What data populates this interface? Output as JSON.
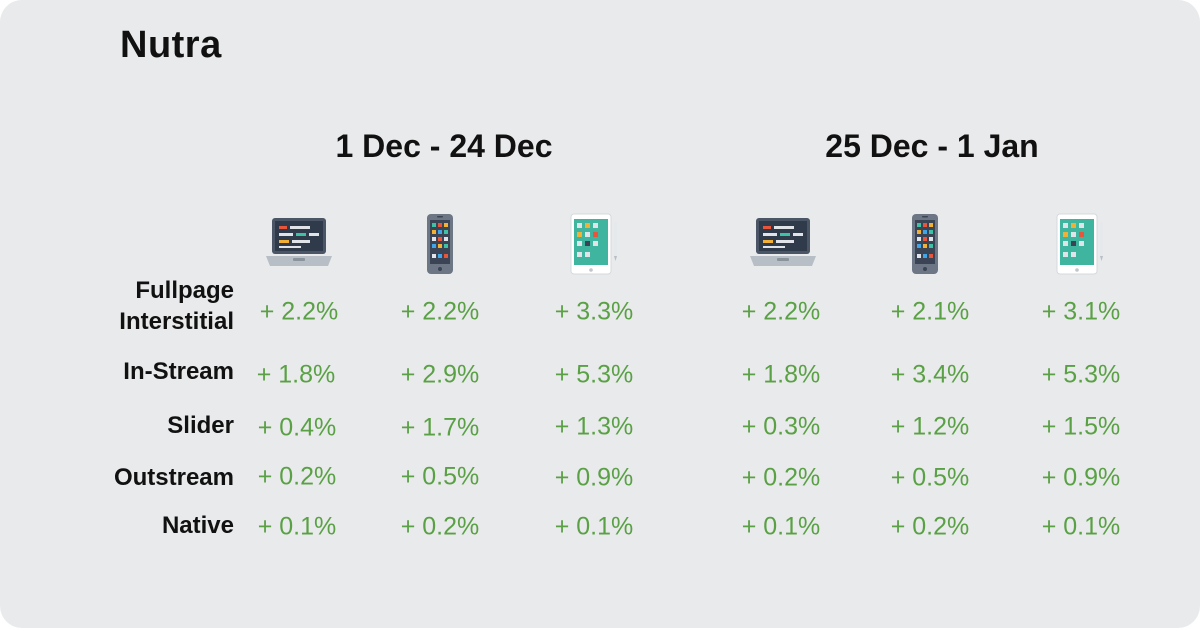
{
  "title": "Nutra",
  "periods": [
    "1 Dec - 24 Dec",
    "25 Dec - 1 Jan"
  ],
  "devices": [
    "laptop-icon",
    "smartphone-icon",
    "tablet-icon"
  ],
  "rows": [
    {
      "label_line1": "Fullpage",
      "label_line2": "Interstitial",
      "values": [
        "+ 2.2%",
        "+ 2.2%",
        "+ 3.3%",
        "+ 2.2%",
        "+ 2.1%",
        "+ 3.1%"
      ]
    },
    {
      "label_line1": "In-Stream",
      "values": [
        "+ 1.8%",
        "+ 2.9%",
        "+ 5.3%",
        "+ 1.8%",
        "+ 3.4%",
        "+ 5.3%"
      ]
    },
    {
      "label_line1": "Slider",
      "values": [
        "+ 0.4%",
        "+ 1.7%",
        "+ 1.3%",
        "+ 0.3%",
        "+ 1.2%",
        "+ 1.5%"
      ]
    },
    {
      "label_line1": "Outstream",
      "values": [
        "+ 0.2%",
        "+ 0.5%",
        "+ 0.9%",
        "+ 0.2%",
        "+ 0.5%",
        "+ 0.9%"
      ]
    },
    {
      "label_line1": "Native",
      "values": [
        "+ 0.1%",
        "+ 0.2%",
        "+ 0.1%",
        "+ 0.1%",
        "+ 0.2%",
        "+ 0.1%"
      ]
    }
  ],
  "colors": {
    "background": "#e9eaeb",
    "value_green": "#5aa146",
    "text": "#111111"
  }
}
